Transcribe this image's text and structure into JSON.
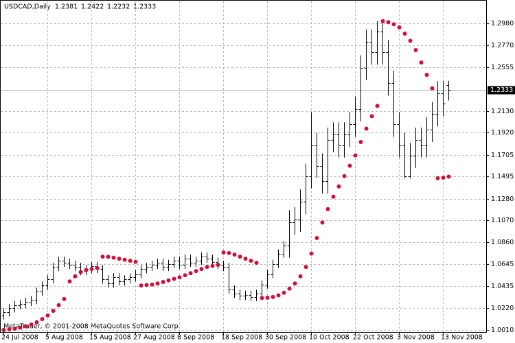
{
  "chart_data": {
    "type": "ohlc",
    "title": "USDCAD,Daily",
    "watermark": "MetaTrader, © 2001-2008 MetaQuotes Software Corp.",
    "categories": [
      "24 Jul 2008",
      null,
      null,
      null,
      null,
      null,
      null,
      null,
      "5 Aug 2008",
      null,
      null,
      null,
      null,
      null,
      null,
      null,
      "15 Aug 2008",
      null,
      null,
      null,
      null,
      null,
      null,
      null,
      "27 Aug 2008",
      null,
      null,
      null,
      null,
      null,
      null,
      null,
      "8 Sep 2008",
      null,
      null,
      null,
      null,
      null,
      null,
      null,
      "18 Sep 2008",
      null,
      null,
      null,
      null,
      null,
      null,
      null,
      "30 Sep 2008",
      null,
      null,
      null,
      null,
      null,
      null,
      null,
      "10 Oct 2008",
      null,
      null,
      null,
      null,
      null,
      null,
      null,
      "22 Oct 2008",
      null,
      null,
      null,
      null,
      null,
      null,
      null,
      "3 Nov 2008",
      null,
      null,
      null,
      null,
      null,
      null,
      null,
      "13 Nov 2008",
      null
    ],
    "open": [
      1.015,
      1.018,
      1.022,
      1.025,
      1.026,
      1.028,
      1.03,
      1.038,
      1.044,
      1.05,
      1.062,
      1.068,
      1.066,
      1.064,
      1.062,
      1.058,
      1.06,
      1.063,
      1.06,
      1.05,
      1.046,
      1.052,
      1.048,
      1.05,
      1.052,
      1.055,
      1.06,
      1.062,
      1.064,
      1.066,
      1.062,
      1.065,
      1.068,
      1.064,
      1.07,
      1.066,
      1.068,
      1.072,
      1.07,
      1.067,
      1.064,
      1.062,
      1.04,
      1.036,
      1.034,
      1.035,
      1.033,
      1.036,
      1.045,
      1.055,
      1.065,
      1.075,
      1.083,
      1.105,
      1.108,
      1.125,
      1.15,
      1.18,
      1.16,
      1.145,
      1.185,
      1.19,
      1.18,
      1.19,
      1.2,
      1.215,
      1.255,
      1.28,
      1.27,
      1.29,
      1.27,
      1.24,
      1.2,
      1.18,
      1.15,
      1.17,
      1.185,
      1.18,
      1.195,
      1.21,
      1.23,
      1.2381
    ],
    "high": [
      1.022,
      1.026,
      1.029,
      1.03,
      1.032,
      1.034,
      1.042,
      1.048,
      1.054,
      1.066,
      1.072,
      1.072,
      1.07,
      1.068,
      1.066,
      1.064,
      1.067,
      1.067,
      1.064,
      1.054,
      1.056,
      1.056,
      1.054,
      1.056,
      1.059,
      1.064,
      1.066,
      1.068,
      1.07,
      1.07,
      1.069,
      1.072,
      1.072,
      1.074,
      1.074,
      1.072,
      1.076,
      1.076,
      1.074,
      1.071,
      1.068,
      1.066,
      1.044,
      1.04,
      1.039,
      1.039,
      1.04,
      1.049,
      1.059,
      1.069,
      1.079,
      1.087,
      1.117,
      1.12,
      1.137,
      1.162,
      1.212,
      1.192,
      1.172,
      1.197,
      1.202,
      1.202,
      1.202,
      1.212,
      1.227,
      1.267,
      1.292,
      1.292,
      1.3,
      1.3,
      1.282,
      1.252,
      1.212,
      1.192,
      1.182,
      1.197,
      1.197,
      1.207,
      1.222,
      1.242,
      1.242,
      1.2422
    ],
    "low": [
      1.011,
      1.014,
      1.018,
      1.021,
      1.022,
      1.024,
      1.026,
      1.034,
      1.04,
      1.046,
      1.058,
      1.062,
      1.06,
      1.058,
      1.054,
      1.054,
      1.056,
      1.056,
      1.046,
      1.042,
      1.042,
      1.044,
      1.044,
      1.046,
      1.048,
      1.051,
      1.056,
      1.058,
      1.06,
      1.058,
      1.058,
      1.061,
      1.06,
      1.06,
      1.062,
      1.062,
      1.064,
      1.066,
      1.063,
      1.06,
      1.058,
      1.036,
      1.032,
      1.03,
      1.03,
      1.029,
      1.029,
      1.032,
      1.041,
      1.051,
      1.061,
      1.071,
      1.071,
      1.093,
      1.096,
      1.113,
      1.138,
      1.148,
      1.133,
      1.133,
      1.173,
      1.168,
      1.168,
      1.178,
      1.188,
      1.203,
      1.243,
      1.258,
      1.258,
      1.258,
      1.228,
      1.188,
      1.168,
      1.148,
      1.148,
      1.158,
      1.168,
      1.168,
      1.183,
      1.198,
      1.208,
      1.2232
    ],
    "close": [
      1.018,
      1.022,
      1.025,
      1.026,
      1.028,
      1.03,
      1.038,
      1.044,
      1.05,
      1.062,
      1.068,
      1.066,
      1.064,
      1.062,
      1.058,
      1.06,
      1.063,
      1.06,
      1.05,
      1.046,
      1.052,
      1.048,
      1.05,
      1.052,
      1.055,
      1.06,
      1.062,
      1.064,
      1.066,
      1.062,
      1.065,
      1.068,
      1.064,
      1.07,
      1.066,
      1.068,
      1.072,
      1.07,
      1.067,
      1.064,
      1.062,
      1.04,
      1.036,
      1.034,
      1.035,
      1.033,
      1.036,
      1.045,
      1.055,
      1.065,
      1.075,
      1.083,
      1.105,
      1.108,
      1.125,
      1.15,
      1.18,
      1.16,
      1.145,
      1.185,
      1.19,
      1.18,
      1.19,
      1.2,
      1.215,
      1.255,
      1.28,
      1.27,
      1.29,
      1.27,
      1.24,
      1.2,
      1.18,
      1.15,
      1.17,
      1.185,
      1.18,
      1.195,
      1.21,
      1.23,
      1.22,
      1.2333
    ],
    "color": "#000000",
    "sar": {
      "color": "#d0103a",
      "values": [
        1.001,
        1.0015,
        1.0022,
        1.0032,
        1.0045,
        1.0062,
        1.0085,
        1.0115,
        1.015,
        1.0195,
        1.025,
        1.031,
        1.048,
        1.053,
        1.057,
        1.059,
        1.06,
        1.061,
        1.072,
        1.0718,
        1.071,
        1.07,
        1.069,
        1.068,
        1.067,
        1.044,
        1.0445,
        1.045,
        1.046,
        1.0475,
        1.049,
        1.0505,
        1.052,
        1.054,
        1.056,
        1.058,
        1.06,
        1.062,
        1.063,
        1.064,
        1.076,
        1.0755,
        1.074,
        1.072,
        1.07,
        1.068,
        1.066,
        1.032,
        1.0322,
        1.033,
        1.0345,
        1.037,
        1.041,
        1.046,
        1.053,
        1.062,
        1.075,
        1.09,
        1.105,
        1.118,
        1.13,
        1.14,
        1.15,
        1.16,
        1.17,
        1.183,
        1.196,
        1.208,
        1.218,
        1.3,
        1.299,
        1.297,
        1.294,
        1.288,
        1.281,
        1.272,
        1.26,
        1.248,
        1.235,
        1.148,
        1.1485,
        1.1495
      ]
    },
    "ylim": [
      0.999,
      1.3192
    ],
    "yticks": [
      {
        "value": 1.001,
        "label": "1.0010"
      },
      {
        "value": 1.022,
        "label": "1.0220"
      },
      {
        "value": 1.0435,
        "label": "1.0435"
      },
      {
        "value": 1.0645,
        "label": "1.0645"
      },
      {
        "value": 1.086,
        "label": "1.0860"
      },
      {
        "value": 1.107,
        "label": "1.1070"
      },
      {
        "value": 1.128,
        "label": "1.1280"
      },
      {
        "value": 1.1495,
        "label": "1.1495"
      },
      {
        "value": 1.1705,
        "label": "1.1705"
      },
      {
        "value": 1.192,
        "label": "1.1920"
      },
      {
        "value": 1.213,
        "label": "1.2130"
      },
      {
        "value": 1.2555,
        "label": "1.2555"
      },
      {
        "value": 1.277,
        "label": "1.2770"
      },
      {
        "value": 1.298,
        "label": "1.2980"
      }
    ],
    "grid": true,
    "price_line": true
  }
}
